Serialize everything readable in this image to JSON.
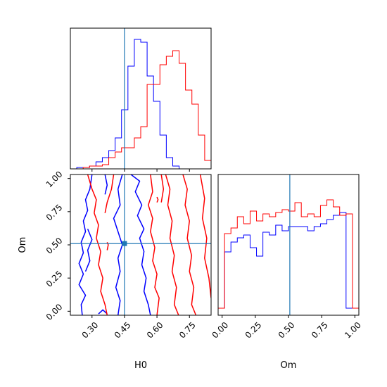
{
  "chart_data": {
    "type": "corner",
    "colors": {
      "series_a": "#0000ff",
      "series_b": "#ff0000",
      "truth": "#1f77b4"
    },
    "truth": {
      "H0": 0.45,
      "Om": 0.51
    },
    "axes": {
      "H0": {
        "label": "H0",
        "range": [
          0.2,
          0.85
        ],
        "ticks": [
          0.3,
          0.45,
          0.6,
          0.75
        ],
        "tick_labels": [
          "0.30",
          "0.45",
          "0.60",
          "0.75"
        ]
      },
      "Om": {
        "label": "Om",
        "range": [
          -0.03,
          1.03
        ],
        "ticks": [
          0.0,
          0.25,
          0.5,
          0.75,
          1.0
        ],
        "tick_labels": [
          "0.00",
          "0.25",
          "0.50",
          "0.75",
          "1.00"
        ]
      }
    },
    "hist_H0": {
      "range": [
        0.2,
        0.85
      ],
      "bins": 22,
      "ylim": [
        0,
        1.0
      ],
      "series": [
        {
          "color_key": "series_a",
          "values": [
            0.0,
            0.01,
            0.01,
            0.02,
            0.05,
            0.08,
            0.13,
            0.22,
            0.42,
            0.73,
            0.92,
            0.9,
            0.66,
            0.48,
            0.24,
            0.08,
            0.02,
            0.0,
            0.0,
            0.0,
            0.0,
            0.0
          ]
        },
        {
          "color_key": "series_b",
          "values": [
            0.0,
            0.0,
            0.01,
            0.02,
            0.02,
            0.03,
            0.08,
            0.12,
            0.15,
            0.15,
            0.22,
            0.3,
            0.6,
            0.6,
            0.74,
            0.8,
            0.84,
            0.75,
            0.56,
            0.46,
            0.24,
            0.06
          ]
        }
      ]
    },
    "hist_Om": {
      "range": [
        -0.03,
        1.03
      ],
      "bins": 22,
      "ylim": [
        0,
        1.0
      ],
      "series": [
        {
          "color_key": "series_a",
          "values": [
            0.05,
            0.45,
            0.52,
            0.55,
            0.57,
            0.48,
            0.42,
            0.59,
            0.57,
            0.64,
            0.6,
            0.63,
            0.63,
            0.63,
            0.6,
            0.63,
            0.65,
            0.68,
            0.71,
            0.73,
            0.05,
            0.05
          ]
        },
        {
          "color_key": "series_b",
          "values": [
            0.05,
            0.58,
            0.62,
            0.7,
            0.65,
            0.74,
            0.67,
            0.72,
            0.7,
            0.73,
            0.75,
            0.74,
            0.8,
            0.7,
            0.72,
            0.7,
            0.78,
            0.82,
            0.77,
            0.71,
            0.72,
            0.05
          ]
        }
      ]
    },
    "contours": [
      {
        "color_key": "series_a",
        "lines": [
          [
            [
              0.255,
              -0.03
            ],
            [
              0.25,
              0.05
            ],
            [
              0.27,
              0.12
            ],
            [
              0.24,
              0.2
            ],
            [
              0.26,
              0.28
            ],
            [
              0.24,
              0.36
            ],
            [
              0.26,
              0.44
            ],
            [
              0.25,
              0.52
            ],
            [
              0.27,
              0.6
            ],
            [
              0.26,
              0.68
            ],
            [
              0.28,
              0.76
            ],
            [
              0.27,
              0.84
            ],
            [
              0.29,
              0.92
            ],
            [
              0.3,
              1.03
            ]
          ],
          [
            [
              0.42,
              -0.03
            ],
            [
              0.43,
              0.08
            ],
            [
              0.41,
              0.18
            ],
            [
              0.43,
              0.3
            ],
            [
              0.42,
              0.4
            ],
            [
              0.44,
              0.5
            ],
            [
              0.42,
              0.6
            ],
            [
              0.4,
              0.7
            ],
            [
              0.43,
              0.8
            ],
            [
              0.42,
              0.92
            ],
            [
              0.44,
              1.03
            ]
          ],
          [
            [
              0.33,
              -0.02
            ],
            [
              0.35,
              0.01
            ],
            [
              0.37,
              -0.02
            ]
          ],
          [
            [
              0.27,
              0.3
            ],
            [
              0.29,
              0.38
            ],
            [
              0.28,
              0.46
            ],
            [
              0.3,
              0.54
            ],
            [
              0.28,
              0.62
            ]
          ],
          [
            [
              0.48,
              1.03
            ],
            [
              0.52,
              0.98
            ],
            [
              0.5,
              0.9
            ],
            [
              0.53,
              0.8
            ],
            [
              0.51,
              0.72
            ],
            [
              0.54,
              0.62
            ],
            [
              0.52,
              0.55
            ],
            [
              0.54,
              0.45
            ],
            [
              0.53,
              0.35
            ],
            [
              0.55,
              0.25
            ],
            [
              0.54,
              0.15
            ],
            [
              0.56,
              0.05
            ],
            [
              0.57,
              -0.03
            ]
          ],
          [
            [
              0.36,
              1.03
            ],
            [
              0.37,
              0.95
            ],
            [
              0.36,
              0.88
            ]
          ]
        ]
      },
      {
        "color_key": "series_b",
        "lines": [
          [
            [
              0.28,
              1.03
            ],
            [
              0.3,
              0.92
            ],
            [
              0.32,
              0.84
            ],
            [
              0.31,
              0.74
            ],
            [
              0.33,
              0.65
            ],
            [
              0.32,
              0.55
            ],
            [
              0.34,
              0.45
            ],
            [
              0.33,
              0.35
            ],
            [
              0.35,
              0.25
            ],
            [
              0.34,
              0.15
            ],
            [
              0.36,
              0.05
            ],
            [
              0.37,
              -0.03
            ]
          ],
          [
            [
              0.4,
              1.03
            ],
            [
              0.39,
              0.92
            ],
            [
              0.37,
              0.82
            ],
            [
              0.36,
              0.74
            ]
          ],
          [
            [
              0.37,
              0.46
            ],
            [
              0.375,
              0.5
            ],
            [
              0.37,
              0.52
            ]
          ],
          [
            [
              0.57,
              1.03
            ],
            [
              0.58,
              0.9
            ],
            [
              0.56,
              0.8
            ],
            [
              0.58,
              0.7
            ],
            [
              0.57,
              0.6
            ],
            [
              0.59,
              0.48
            ],
            [
              0.58,
              0.38
            ],
            [
              0.6,
              0.28
            ],
            [
              0.59,
              0.18
            ],
            [
              0.61,
              0.1
            ],
            [
              0.6,
              -0.03
            ]
          ],
          [
            [
              0.62,
              1.03
            ],
            [
              0.63,
              0.92
            ],
            [
              0.62,
              0.82
            ]
          ],
          [
            [
              0.64,
              1.03
            ],
            [
              0.66,
              0.92
            ],
            [
              0.65,
              0.8
            ],
            [
              0.67,
              0.68
            ],
            [
              0.66,
              0.55
            ],
            [
              0.68,
              0.42
            ],
            [
              0.67,
              0.3
            ],
            [
              0.69,
              0.18
            ],
            [
              0.68,
              0.05
            ],
            [
              0.7,
              -0.03
            ]
          ],
          [
            [
              0.72,
              1.03
            ],
            [
              0.74,
              0.92
            ],
            [
              0.73,
              0.8
            ],
            [
              0.75,
              0.68
            ],
            [
              0.74,
              0.55
            ],
            [
              0.76,
              0.42
            ],
            [
              0.75,
              0.3
            ],
            [
              0.77,
              0.18
            ],
            [
              0.76,
              0.05
            ],
            [
              0.78,
              -0.03
            ]
          ],
          [
            [
              0.8,
              1.03
            ],
            [
              0.82,
              0.85
            ],
            [
              0.81,
              0.7
            ],
            [
              0.83,
              0.55
            ],
            [
              0.82,
              0.4
            ],
            [
              0.84,
              0.25
            ],
            [
              0.85,
              0.1
            ]
          ],
          [
            [
              0.6,
              0.82
            ],
            [
              0.605,
              0.84
            ],
            [
              0.6,
              0.86
            ]
          ]
        ]
      }
    ]
  }
}
